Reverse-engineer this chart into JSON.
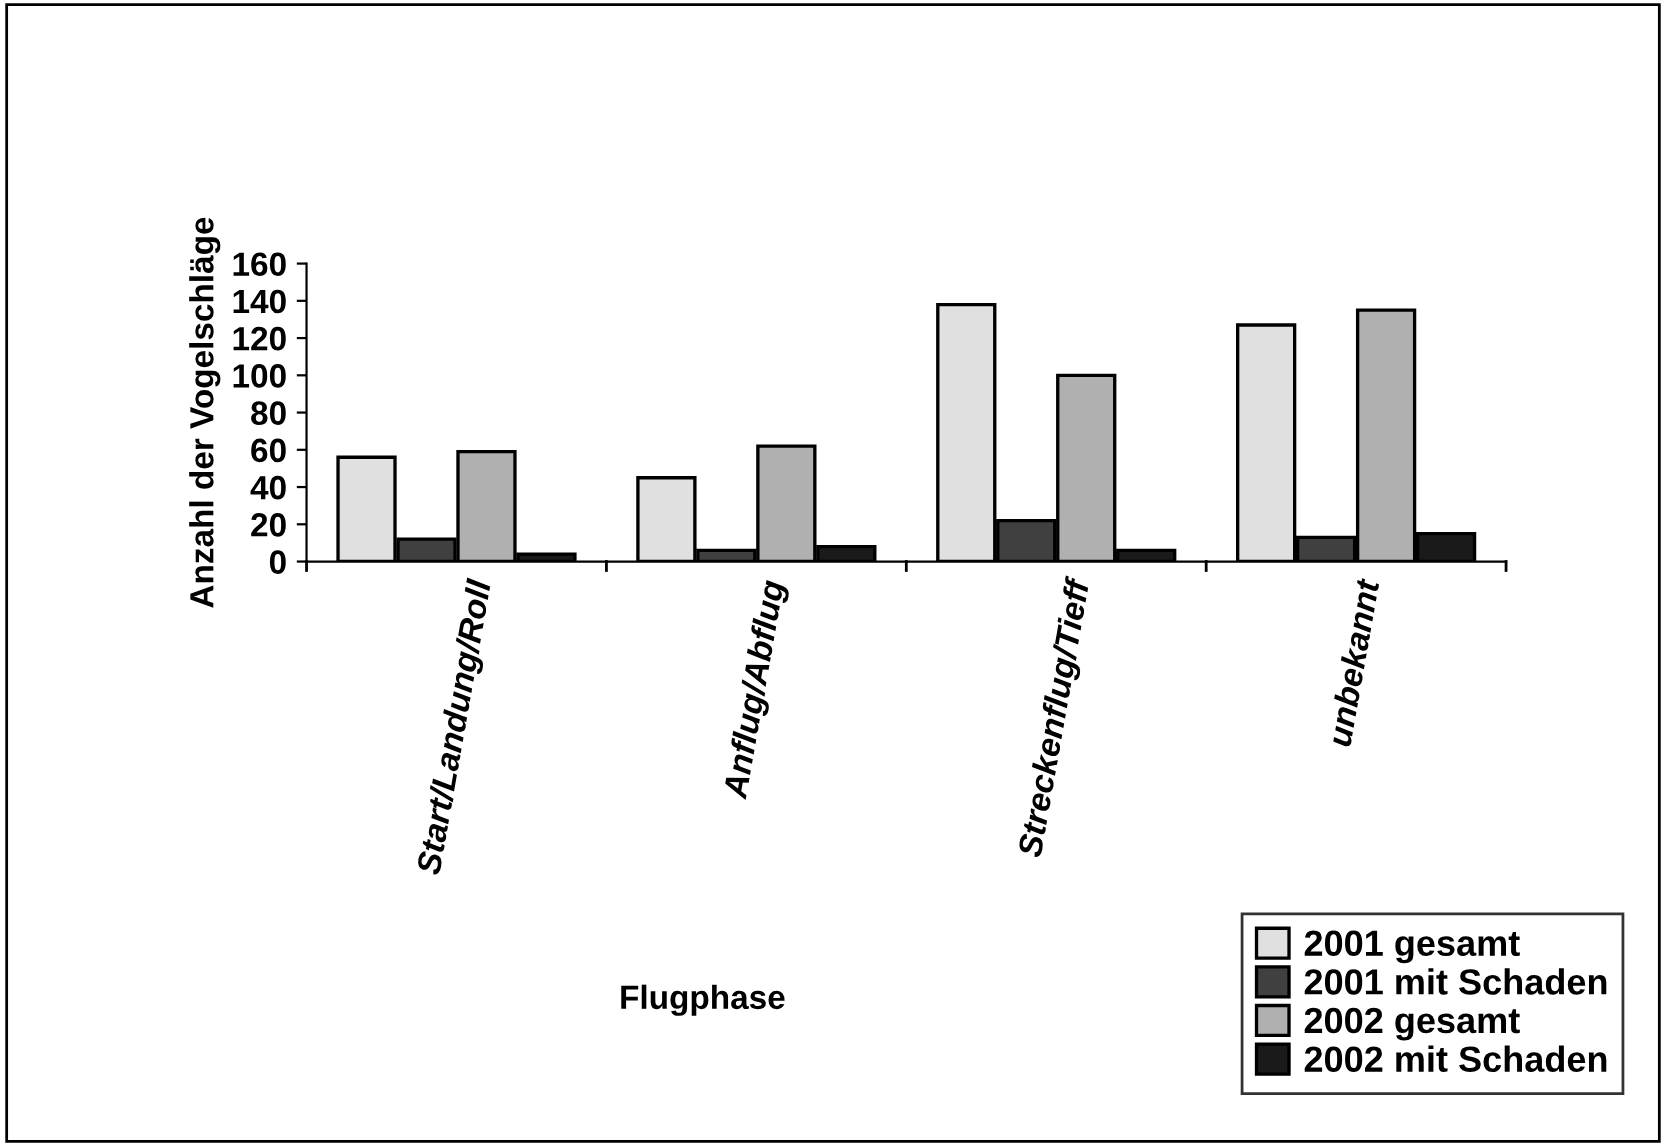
{
  "chart_data": {
    "type": "bar",
    "xlabel": "Flugphase",
    "ylabel": "Anzahl der Vogelschläge",
    "categories": [
      "Start/Landung/Roll",
      "Anflug/Abflug",
      "Streckenflug/Tieff",
      "unbekannt"
    ],
    "series": [
      {
        "name": "2001 gesamt",
        "color": "#e0e0e0",
        "values": [
          56,
          45,
          138,
          127
        ]
      },
      {
        "name": "2001 mit Schaden",
        "color": "#404040",
        "values": [
          12,
          6,
          22,
          13
        ]
      },
      {
        "name": "2002 gesamt",
        "color": "#b0b0b0",
        "values": [
          59,
          62,
          100,
          135
        ]
      },
      {
        "name": "2002 mit Schaden",
        "color": "#1a1a1a",
        "values": [
          4,
          8,
          6,
          15
        ]
      }
    ],
    "ylim": [
      0,
      160
    ],
    "yticks": [
      0,
      20,
      40,
      60,
      80,
      100,
      120,
      140,
      160
    ],
    "grid": false,
    "legend": "bottom right"
  }
}
